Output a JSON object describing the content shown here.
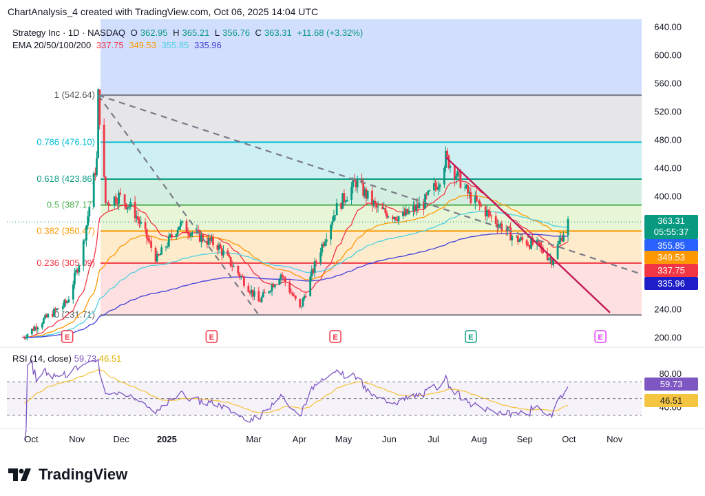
{
  "header": {
    "title": "ChartAnalysis_4 created with TradingView.com, Oct 06, 2025 14:04 UTC"
  },
  "legend": {
    "symbol": "Strategy Inc · 1D · NASDAQ",
    "o_label": "O",
    "o": "362.95",
    "h_label": "H",
    "h": "365.21",
    "l_label": "L",
    "l": "356.76",
    "c_label": "C",
    "c": "363.31",
    "change": "+11.68 (+3.32%)",
    "ema_label": "EMA 20/50/100/200",
    "ema20": "337.75",
    "ema50": "349.53",
    "ema100": "355.85",
    "ema200": "335.96"
  },
  "rsi_legend": {
    "label": "RSI (14, close)",
    "rsi": "59.73",
    "ma": "46.51"
  },
  "price_tags": {
    "last": "363.31",
    "countdown": "05:55:37",
    "ema100": "355.85",
    "ema50": "349.53",
    "ema20": "337.75",
    "ema200": "335.96",
    "rsi": "59.73",
    "rsi_ma": "46.51"
  },
  "colors": {
    "up": "#089981",
    "down": "#f23645",
    "ema20": "#f23645",
    "ema50": "#ff9800",
    "ema100": "#4dd0e1",
    "ema200": "#3f3fdc",
    "rsi": "#7e57c2",
    "rsi_ma": "#f5c542",
    "trendline": "#c2185b",
    "dashed": "#787b86"
  },
  "branding": {
    "logo_text": "TradingView"
  },
  "chart_data": {
    "type": "candlestick",
    "title": "Strategy Inc · 1D · NASDAQ",
    "price_axis_ticks": [
      "640.00",
      "600.00",
      "560.00",
      "520.00",
      "480.00",
      "440.00",
      "400.00",
      "360.00",
      "320.00",
      "280.00",
      "240.00",
      "200.00"
    ],
    "rsi_axis_ticks": [
      "80.00",
      "40.00"
    ],
    "x_tick_labels": [
      "Oct",
      "Nov",
      "Dec",
      "2025",
      "Mar",
      "Apr",
      "May",
      "Jun",
      "Jul",
      "Aug",
      "Sep",
      "Oct",
      "Nov"
    ],
    "ylim": [
      190,
      650
    ],
    "fibonacci": [
      {
        "level": "1",
        "price": 542.64,
        "label": "1 (542.64)"
      },
      {
        "level": "0.786",
        "price": 476.1,
        "label": "0.786 (476.10)"
      },
      {
        "level": "0.618",
        "price": 423.86,
        "label": "0.618 (423.86)"
      },
      {
        "level": "0.5",
        "price": 387.17,
        "label": "0.5 (387.17)"
      },
      {
        "level": "0.382",
        "price": 350.47,
        "label": "0.382 (350.47)"
      },
      {
        "level": "0.236",
        "price": 305.09,
        "label": "0.236 (305.09)"
      },
      {
        "level": "0",
        "price": 231.71,
        "label": "0 (231.71)"
      }
    ],
    "earnings_markers": [
      {
        "month": "Oct",
        "label": "E"
      },
      {
        "month": "Jan",
        "label": "E"
      },
      {
        "month": "Apr",
        "label": "E"
      },
      {
        "month": "Aug",
        "label": "E"
      },
      {
        "month": "Oct",
        "label": "E"
      }
    ],
    "price_path": [
      [
        "2024-10-01",
        200
      ],
      [
        "2024-10-15",
        225
      ],
      [
        "2024-10-31",
        250
      ],
      [
        "2024-11-10",
        320
      ],
      [
        "2024-11-20",
        450
      ],
      [
        "2024-11-21",
        542
      ],
      [
        "2024-11-26",
        390
      ],
      [
        "2024-12-05",
        400
      ],
      [
        "2024-12-15",
        380
      ],
      [
        "2024-12-31",
        310
      ],
      [
        "2025-01-15",
        360
      ],
      [
        "2025-01-31",
        340
      ],
      [
        "2025-02-10",
        330
      ],
      [
        "2025-02-28",
        280
      ],
      [
        "2025-03-10",
        250
      ],
      [
        "2025-03-25",
        290
      ],
      [
        "2025-04-07",
        240
      ],
      [
        "2025-04-20",
        320
      ],
      [
        "2025-05-01",
        380
      ],
      [
        "2025-05-15",
        420
      ],
      [
        "2025-05-30",
        380
      ],
      [
        "2025-06-15",
        370
      ],
      [
        "2025-06-30",
        390
      ],
      [
        "2025-07-10",
        420
      ],
      [
        "2025-07-15",
        455
      ],
      [
        "2025-07-31",
        400
      ],
      [
        "2025-08-15",
        370
      ],
      [
        "2025-08-31",
        340
      ],
      [
        "2025-09-15",
        330
      ],
      [
        "2025-09-25",
        310
      ],
      [
        "2025-10-06",
        363.31
      ]
    ],
    "ema": {
      "ema20": 337.75,
      "ema50": 349.53,
      "ema100": 355.85,
      "ema200": 335.96
    },
    "rsi": {
      "value": 59.73,
      "ma": 46.51
    }
  }
}
